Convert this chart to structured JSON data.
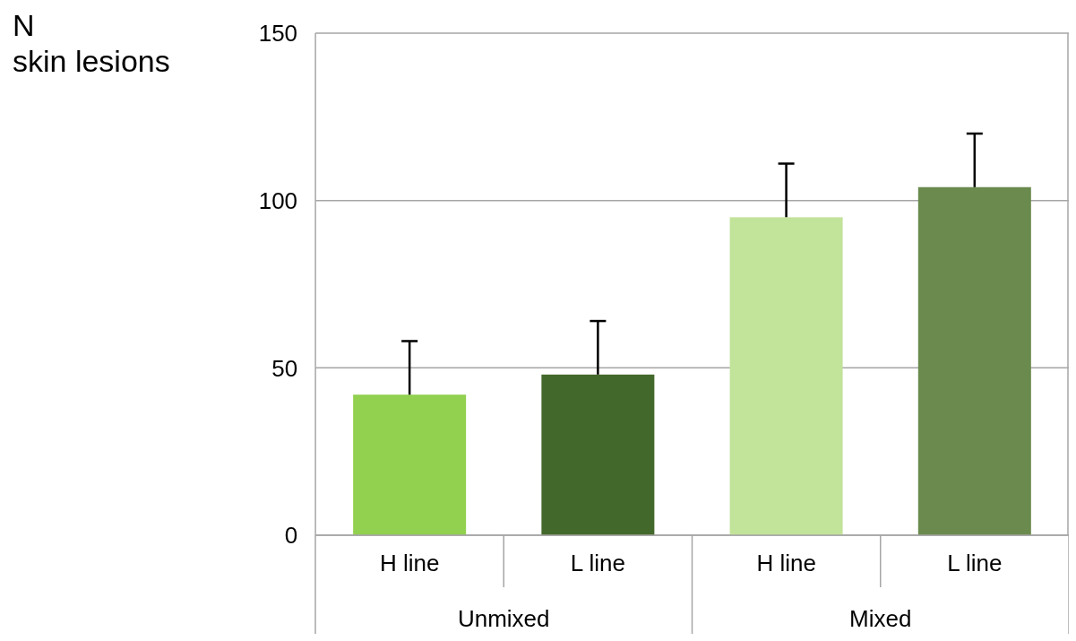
{
  "chart_data": {
    "type": "bar",
    "ylabel": "N\nskin lesions",
    "categories": [
      "H line",
      "L line",
      "H line",
      "L line"
    ],
    "values": [
      42,
      48,
      95,
      104
    ],
    "colors": [
      "#92d050",
      "#43682b",
      "#c2e39a",
      "#6a8a4e"
    ],
    "errors": [
      [
        42,
        58
      ],
      [
        48,
        64
      ],
      [
        95,
        111
      ],
      [
        104,
        120
      ]
    ],
    "annotations": [
      "Unmixed",
      "Mixed"
    ],
    "ylim": [
      0,
      150
    ],
    "yticks": [
      0,
      50,
      100,
      150
    ],
    "grid": "y"
  }
}
